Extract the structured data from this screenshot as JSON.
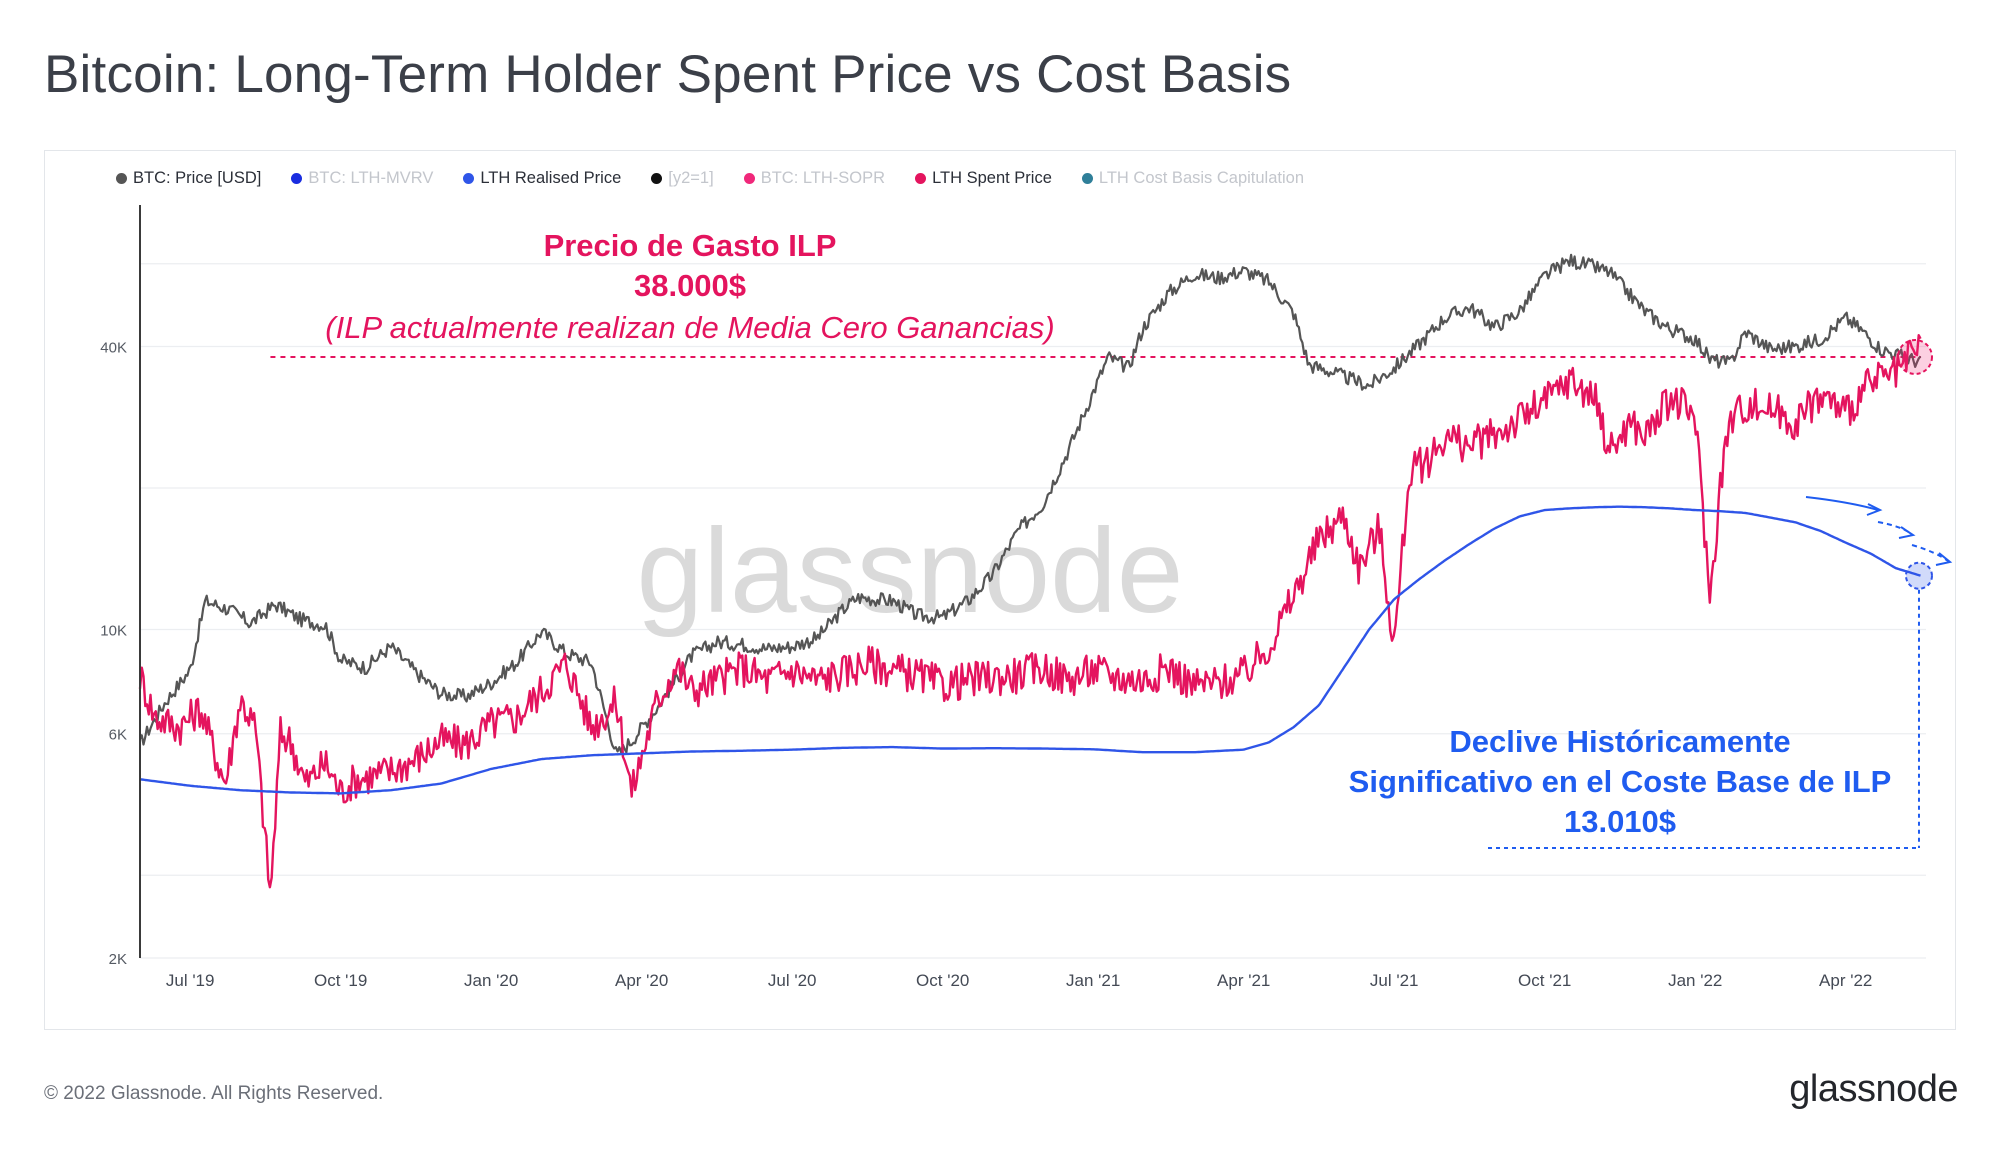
{
  "title": "Bitcoin: Long-Term Holder Spent Price vs Cost Basis",
  "footer": {
    "copyright": "© 2022 Glassnode. All Rights Reserved.",
    "logo": "glassnode"
  },
  "watermark": "glassnode",
  "legend": [
    {
      "label": "BTC: Price [USD]",
      "color": "#555555",
      "active": true
    },
    {
      "label": "BTC: LTH-MVRV",
      "color": "#1a2de0",
      "active": false
    },
    {
      "label": "LTH Realised Price",
      "color": "#2f55e8",
      "active": true
    },
    {
      "label": "[y2=1]",
      "color": "#111111",
      "active": false
    },
    {
      "label": "BTC: LTH-SOPR",
      "color": "#f0287a",
      "active": false
    },
    {
      "label": "LTH Spent Price",
      "color": "#e4145e",
      "active": true
    },
    {
      "label": "LTH Cost Basis Capitulation",
      "color": "#2f7f99",
      "active": false
    }
  ],
  "annotations": {
    "spent_title": "Precio de Gasto ILP",
    "spent_value": "38.000$",
    "spent_note": "(ILP actualmente realizan de Media Cero Ganancias)",
    "basis_line1": "Declive Históricamente",
    "basis_line2": "Significativo en el Coste Base de ILP",
    "basis_value": "13.010$"
  },
  "chart_data": {
    "type": "line",
    "title": "Bitcoin: Long-Term Holder Spent Price vs Cost Basis",
    "y_scale": "log",
    "ylim": [
      2000,
      80000
    ],
    "y_ticks": [
      {
        "value": 2000,
        "label": "2K"
      },
      {
        "value": 6000,
        "label": "6K"
      },
      {
        "value": 10000,
        "label": "10K"
      },
      {
        "value": 40000,
        "label": "40K"
      }
    ],
    "y_gridlines": [
      2000,
      3000,
      6000,
      10000,
      20000,
      40000,
      60000
    ],
    "x_range": [
      0,
      35.6
    ],
    "x_ticks": [
      {
        "value": 1,
        "label": "Jul '19"
      },
      {
        "value": 4,
        "label": "Oct '19"
      },
      {
        "value": 7,
        "label": "Jan '20"
      },
      {
        "value": 10,
        "label": "Apr '20"
      },
      {
        "value": 13,
        "label": "Jul '20"
      },
      {
        "value": 16,
        "label": "Oct '20"
      },
      {
        "value": 19,
        "label": "Jan '21"
      },
      {
        "value": 22,
        "label": "Apr '21"
      },
      {
        "value": 25,
        "label": "Jul '21"
      },
      {
        "value": 28,
        "label": "Oct '21"
      },
      {
        "value": 31,
        "label": "Jan '22"
      },
      {
        "value": 34,
        "label": "Apr '22"
      }
    ],
    "x_unit": "months since Jun 2019",
    "reference_levels": [
      {
        "name": "LTH Spent Price level",
        "value": 38000,
        "x_start": 2.6,
        "x_end": 35.5
      }
    ],
    "series": [
      {
        "name": "BTC: Price [USD]",
        "color": "#555555",
        "x": [
          0,
          0.5,
          1,
          1.3,
          1.8,
          2.2,
          2.7,
          3.2,
          3.7,
          4,
          4.5,
          5,
          5.5,
          6,
          6.5,
          7,
          7.5,
          8,
          8.5,
          9,
          9.5,
          9.8,
          10.3,
          11,
          11.5,
          12,
          12.5,
          13,
          13.5,
          14,
          14.3,
          15,
          15.5,
          16,
          16.5,
          17,
          17.5,
          18,
          18.5,
          19,
          19.3,
          19.7,
          20,
          20.5,
          21,
          21.5,
          22,
          22.5,
          23,
          23.3,
          23.7,
          24,
          24.5,
          25,
          25.5,
          26,
          26.5,
          27,
          27.5,
          28,
          28.5,
          29,
          29.3,
          29.7,
          30,
          30.5,
          31,
          31.3,
          31.7,
          32,
          32.5,
          33,
          33.5,
          34,
          34.3,
          34.7,
          35,
          35.5
        ],
        "values": [
          5700,
          7000,
          8200,
          11500,
          11000,
          10300,
          11300,
          10500,
          10200,
          8600,
          8300,
          9200,
          8100,
          7300,
          7200,
          7700,
          8500,
          9900,
          8900,
          8500,
          5400,
          5800,
          6800,
          8800,
          9400,
          9300,
          9100,
          9200,
          9600,
          11000,
          11700,
          11500,
          10700,
          10600,
          11500,
          13100,
          16200,
          18500,
          24000,
          32000,
          38000,
          36000,
          44000,
          52000,
          57000,
          56000,
          58000,
          55000,
          47000,
          36500,
          35500,
          34500,
          33000,
          36000,
          40500,
          46000,
          48500,
          44000,
          47500,
          56500,
          61000,
          59000,
          57500,
          51500,
          47500,
          43500,
          41500,
          37500,
          36800,
          43000,
          39500,
          40000,
          41500,
          46000,
          43500,
          39500,
          38500,
          37000
        ]
      },
      {
        "name": "LTH Spent Price",
        "color": "#e4145e",
        "x": [
          0,
          0.3,
          0.8,
          1.2,
          1.7,
          2,
          2.3,
          2.6,
          2.8,
          3,
          3.3,
          3.7,
          4,
          4.3,
          4.7,
          5,
          5.5,
          6,
          6.5,
          7,
          7.5,
          8,
          8.5,
          9,
          9.5,
          9.8,
          10.3,
          10.7,
          11,
          11.5,
          12,
          12.5,
          13,
          13.5,
          14,
          14.5,
          15,
          15.5,
          16,
          16.5,
          17,
          17.5,
          18,
          18.5,
          19,
          19.5,
          20,
          20.5,
          21,
          21.5,
          22,
          22.5,
          23,
          23.5,
          24,
          24.3,
          24.7,
          25,
          25.3,
          25.7,
          26,
          26.5,
          27,
          27.5,
          28,
          28.5,
          29,
          29.3,
          29.7,
          30,
          30.5,
          31,
          31.3,
          31.5,
          31.7,
          32,
          32.5,
          33,
          33.5,
          34,
          34.5,
          35,
          35.3,
          35.5
        ],
        "values": [
          8000,
          6500,
          6200,
          6800,
          4700,
          7100,
          6200,
          2700,
          6000,
          5800,
          4700,
          5200,
          4500,
          4800,
          4900,
          5000,
          5300,
          5800,
          5700,
          6300,
          6500,
          7400,
          8500,
          6200,
          7000,
          4500,
          7000,
          8400,
          7400,
          7800,
          8300,
          7800,
          8200,
          7800,
          8100,
          8500,
          8200,
          8000,
          7600,
          7800,
          7900,
          8000,
          8300,
          7800,
          8200,
          7900,
          7800,
          8300,
          7600,
          7700,
          8000,
          9200,
          11800,
          15500,
          17500,
          13500,
          16500,
          9200,
          21500,
          23000,
          25800,
          24500,
          26000,
          28000,
          30500,
          34000,
          31000,
          24000,
          27500,
          25800,
          31000,
          28500,
          11500,
          20500,
          28000,
          30000,
          29500,
          27500,
          31500,
          29000,
          33500,
          34800,
          38000,
          40000
        ]
      },
      {
        "name": "LTH Realised Price",
        "color": "#2f55e8",
        "x": [
          0,
          1,
          2,
          3,
          4,
          5,
          6,
          7,
          8,
          9,
          10,
          11,
          12,
          13,
          14,
          15,
          16,
          17,
          18,
          19,
          20,
          21,
          22,
          22.5,
          23,
          23.5,
          24,
          24.5,
          25,
          25.5,
          26,
          26.5,
          27,
          27.5,
          28,
          28.5,
          29,
          29.5,
          30,
          30.5,
          31,
          31.5,
          32,
          32.5,
          33,
          33.5,
          34,
          34.5,
          35,
          35.5
        ],
        "values": [
          4800,
          4650,
          4550,
          4500,
          4480,
          4550,
          4700,
          5050,
          5300,
          5400,
          5450,
          5500,
          5520,
          5550,
          5600,
          5620,
          5580,
          5590,
          5580,
          5560,
          5480,
          5480,
          5550,
          5750,
          6200,
          6900,
          8300,
          10000,
          11600,
          12800,
          14000,
          15200,
          16400,
          17400,
          17950,
          18100,
          18200,
          18250,
          18200,
          18100,
          17950,
          17850,
          17700,
          17300,
          16900,
          16200,
          15300,
          14500,
          13500,
          13010
        ]
      }
    ]
  }
}
